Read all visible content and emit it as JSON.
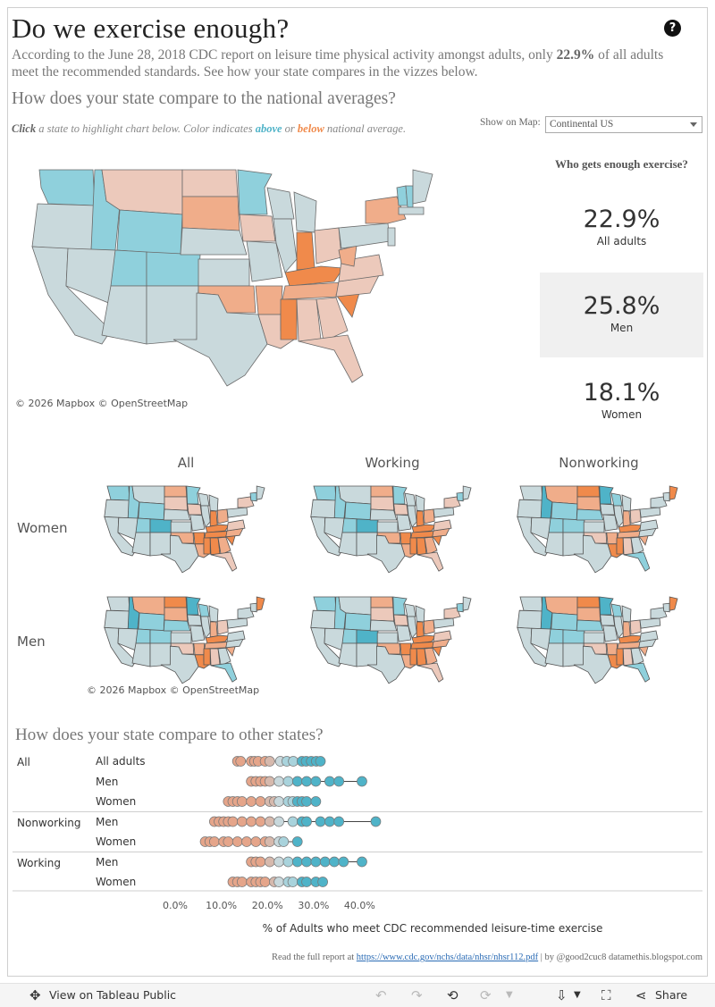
{
  "title": "Do we exercise enough?",
  "intro": {
    "before": "According to the June 28, 2018 CDC report on leisure time physical activity amongst adults, only ",
    "highlight": "22.9%",
    "after": " of all adults meet the recommended standards. See how your state compares in the vizzes below."
  },
  "section1_title": "How does your state compare to the national averages?",
  "hint": {
    "click": "Click",
    "text1": " a state to highlight chart below. Color indicates ",
    "above": "above",
    "or": " or ",
    "below": "below",
    "text2": " national average."
  },
  "show_on_map": {
    "label": "Show on Map:",
    "value": "Continental US"
  },
  "help_icon": "?",
  "map_copyright": "© 2026 Mapbox  © OpenStreetMap",
  "who": {
    "title": "Who gets enough exercise?",
    "stats": [
      {
        "value": "22.9%",
        "label": "All adults"
      },
      {
        "value": "25.8%",
        "label": "Men"
      },
      {
        "value": "18.1%",
        "label": "Women"
      }
    ]
  },
  "small_multiples": {
    "columns": [
      "All",
      "Working",
      "Nonworking"
    ],
    "rows": [
      "Women",
      "Men"
    ],
    "copyright": "© 2026 Mapbox  © OpenStreetMap"
  },
  "section2_title": "How does your state compare to other states?",
  "colors": {
    "above": "#4fb3c8",
    "below": "#f08a4b",
    "neutral": "#c8d8dc"
  },
  "chart_data": {
    "type": "scatter",
    "title": "How does your state compare to other states?",
    "xlabel": "% of Adults who meet CDC recommended leisure-time exercise",
    "xlim": [
      0,
      45
    ],
    "xticks": [
      "0.0%",
      "10.0%",
      "20.0%",
      "30.0%",
      "40.0%"
    ],
    "tick_values": [
      0,
      10,
      20,
      30,
      40
    ],
    "groups": [
      {
        "name": "All",
        "rows": [
          {
            "name": "All adults",
            "min": 13.5,
            "max": 31.5,
            "values": [
              13.5,
              14.2,
              16.5,
              17.2,
              18.0,
              19.5,
              20.5,
              22.8,
              24.2,
              25.6,
              27.5,
              28.4,
              29.5,
              30.6,
              31.5
            ]
          },
          {
            "name": "Men",
            "min": 16.5,
            "max": 40.5,
            "values": [
              16.5,
              17.5,
              18.5,
              19.5,
              20.5,
              22.5,
              24.5,
              26.5,
              28.5,
              30.5,
              33.5,
              35.5,
              40.5
            ]
          },
          {
            "name": "Women",
            "min": 11.5,
            "max": 30.5,
            "values": [
              11.5,
              12.5,
              13.5,
              14.5,
              16.5,
              18.5,
              20.5,
              21.5,
              22.5,
              24.5,
              25.5,
              26.5,
              27.5,
              28.5,
              30.5
            ]
          }
        ]
      },
      {
        "name": "Nonworking",
        "rows": [
          {
            "name": "Men",
            "min": 8.5,
            "max": 43.5,
            "values": [
              8.5,
              9.5,
              10.5,
              11.5,
              12.5,
              14.5,
              16.5,
              18.5,
              20.5,
              22.5,
              25.5,
              27.5,
              28.5,
              31.5,
              33.5,
              35.5,
              43.5
            ]
          },
          {
            "name": "Women",
            "min": 6.5,
            "max": 26.5,
            "values": [
              6.5,
              7.5,
              8.5,
              10.5,
              11.5,
              13.5,
              15.5,
              17.5,
              19.5,
              20.5,
              22.5,
              23.5,
              26.5
            ]
          }
        ]
      },
      {
        "name": "Working",
        "rows": [
          {
            "name": "Men",
            "min": 16.5,
            "max": 40.5,
            "values": [
              16.5,
              17.5,
              18.5,
              20.5,
              22.5,
              24.5,
              26.5,
              28.5,
              30.5,
              32.5,
              34.5,
              36.5,
              40.5
            ]
          },
          {
            "name": "Women",
            "min": 12.5,
            "max": 32.0,
            "values": [
              12.5,
              13.5,
              14.5,
              16.5,
              17.5,
              18.5,
              19.5,
              21.5,
              22.5,
              24.5,
              25.5,
              27.5,
              28.5,
              30.5,
              32.0
            ]
          }
        ]
      }
    ]
  },
  "footer": {
    "prefix": "Read the full report at ",
    "link": "https://www.cdc.gov/nchs/data/nhsr/nhsr112.pdf",
    "suffix": " | by @good2cuc8 datamethis.blogspot.com"
  },
  "toolbar": {
    "view_label": "View on Tableau Public",
    "share_label": "Share"
  }
}
